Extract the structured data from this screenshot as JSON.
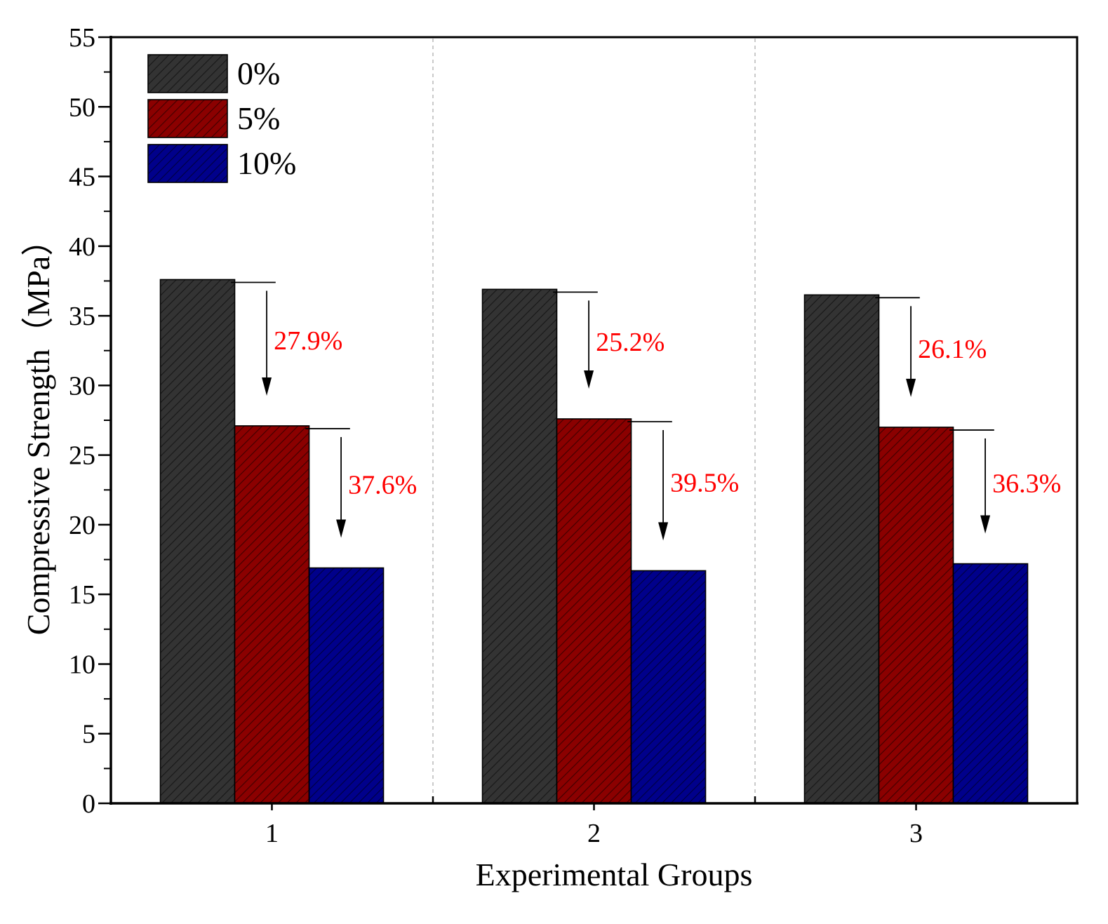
{
  "chart_data": {
    "type": "bar",
    "title": "",
    "xlabel": "Experimental Groups",
    "ylabel": "Compressive Strength（MPa）",
    "ylim": [
      0,
      55
    ],
    "yticks": [
      "0",
      "5",
      "10",
      "15",
      "20",
      "25",
      "30",
      "35",
      "40",
      "45",
      "50",
      "55"
    ],
    "categories": [
      "1",
      "2",
      "3"
    ],
    "series": [
      {
        "name": "0%",
        "values": [
          37.6,
          36.9,
          36.5
        ],
        "color": "#333333",
        "stroke": "#000000"
      },
      {
        "name": "5%",
        "values": [
          27.1,
          27.6,
          27.0
        ],
        "color": "#8b0000",
        "stroke": "#000000"
      },
      {
        "name": "10%",
        "values": [
          16.9,
          16.7,
          17.2
        ],
        "color": "#00008b",
        "stroke": "#000000"
      }
    ],
    "annotations": [
      {
        "category": "1",
        "from_series": "0%",
        "to_series": "5%",
        "text": "27.9%"
      },
      {
        "category": "1",
        "from_series": "5%",
        "to_series": "10%",
        "text": "37.6%"
      },
      {
        "category": "2",
        "from_series": "0%",
        "to_series": "5%",
        "text": "25.2%"
      },
      {
        "category": "2",
        "from_series": "5%",
        "to_series": "10%",
        "text": "39.5%"
      },
      {
        "category": "3",
        "from_series": "0%",
        "to_series": "5%",
        "text": "26.1%"
      },
      {
        "category": "3",
        "from_series": "5%",
        "to_series": "10%",
        "text": "36.3%"
      }
    ],
    "annotation_color": "#ff0000",
    "legend_position": "top-left",
    "pattern": "diagonal-hatch",
    "grid": false,
    "category_separators": "dashed"
  }
}
